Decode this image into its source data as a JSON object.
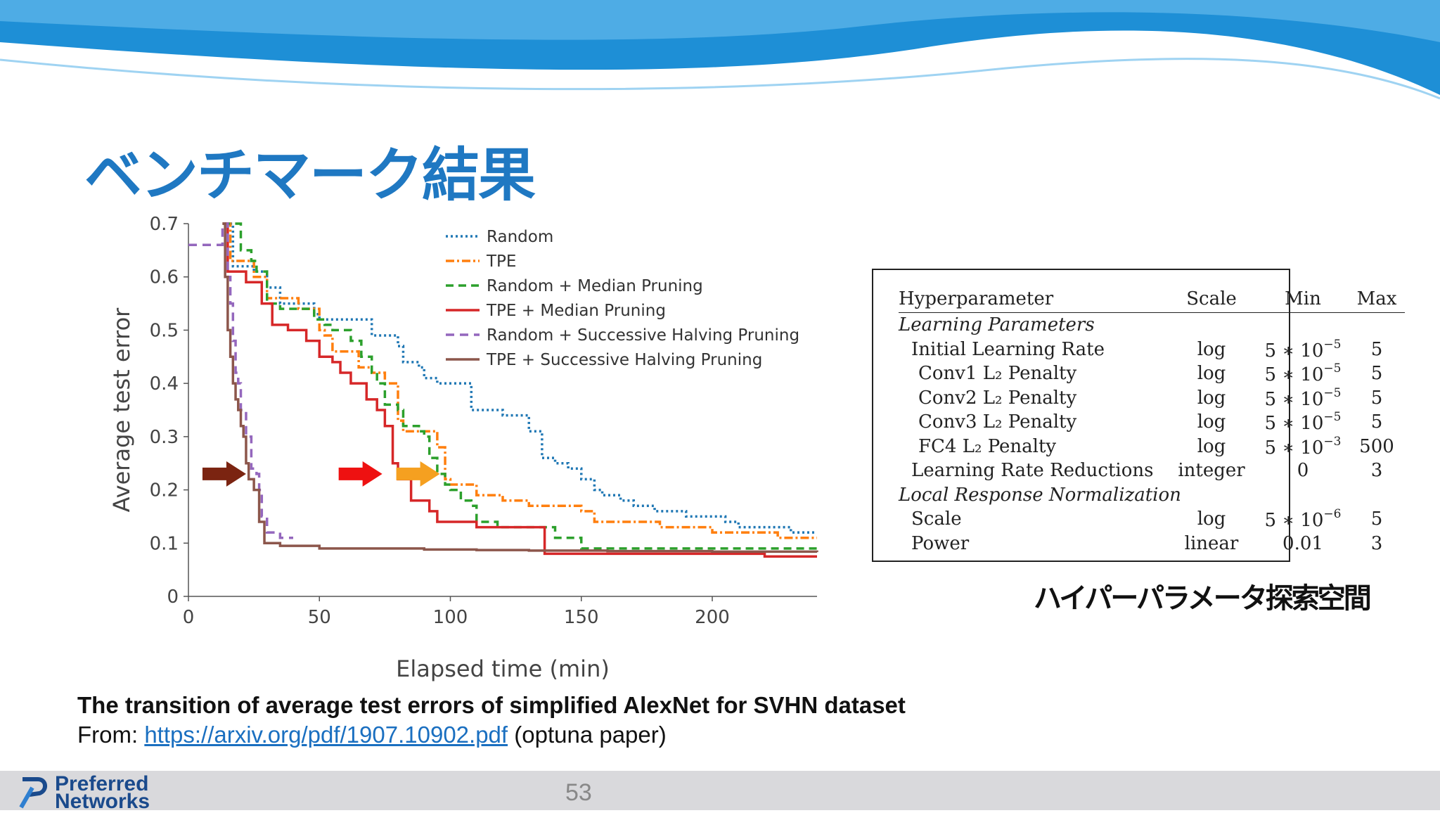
{
  "slide": {
    "title": "ベンチマーク結果",
    "caption": "The transition of average test errors of simplified AlexNet for SVHN dataset",
    "source_prefix": "From: ",
    "source_link": "https://arxiv.org/pdf/1907.10902.pdf",
    "source_suffix": " (optuna paper)",
    "table_caption": "ハイパーパラメータ探索空間",
    "page_number": "53",
    "logo": {
      "line1": "Preferred",
      "line2": "Networks"
    }
  },
  "chart_data": {
    "type": "line",
    "xlabel": "Elapsed time (min)",
    "ylabel": "Average test error",
    "xlim": [
      0,
      240
    ],
    "ylim": [
      0,
      0.7
    ],
    "xticks": [
      0,
      50,
      100,
      150,
      200
    ],
    "yticks": [
      0,
      0.1,
      0.2,
      0.3,
      0.4,
      0.5,
      0.6,
      0.7
    ],
    "legend_position": "top-right",
    "series": [
      {
        "name": "Random",
        "color": "#1f77b4",
        "dash": "dotted",
        "points": [
          [
            14,
            0.7
          ],
          [
            17,
            0.62
          ],
          [
            25,
            0.61
          ],
          [
            30,
            0.58
          ],
          [
            35,
            0.55
          ],
          [
            48,
            0.53
          ],
          [
            50,
            0.52
          ],
          [
            58,
            0.52
          ],
          [
            66,
            0.52
          ],
          [
            70,
            0.49
          ],
          [
            80,
            0.47
          ],
          [
            82,
            0.44
          ],
          [
            88,
            0.43
          ],
          [
            90,
            0.41
          ],
          [
            95,
            0.4
          ],
          [
            106,
            0.4
          ],
          [
            108,
            0.35
          ],
          [
            115,
            0.35
          ],
          [
            120,
            0.34
          ],
          [
            126,
            0.34
          ],
          [
            130,
            0.31
          ],
          [
            135,
            0.26
          ],
          [
            140,
            0.25
          ],
          [
            145,
            0.24
          ],
          [
            150,
            0.22
          ],
          [
            155,
            0.2
          ],
          [
            158,
            0.19
          ],
          [
            165,
            0.18
          ],
          [
            170,
            0.17
          ],
          [
            178,
            0.16
          ],
          [
            185,
            0.16
          ],
          [
            190,
            0.15
          ],
          [
            200,
            0.15
          ],
          [
            205,
            0.14
          ],
          [
            210,
            0.13
          ],
          [
            215,
            0.13
          ],
          [
            225,
            0.13
          ],
          [
            230,
            0.12
          ],
          [
            240,
            0.12
          ]
        ]
      },
      {
        "name": "TPE",
        "color": "#ff7f0e",
        "dash": "dashdot",
        "points": [
          [
            14,
            0.7
          ],
          [
            16,
            0.63
          ],
          [
            20,
            0.63
          ],
          [
            25,
            0.6
          ],
          [
            30,
            0.56
          ],
          [
            35,
            0.56
          ],
          [
            42,
            0.54
          ],
          [
            50,
            0.5
          ],
          [
            52,
            0.49
          ],
          [
            55,
            0.46
          ],
          [
            60,
            0.46
          ],
          [
            65,
            0.43
          ],
          [
            70,
            0.42
          ],
          [
            75,
            0.4
          ],
          [
            80,
            0.33
          ],
          [
            82,
            0.31
          ],
          [
            90,
            0.31
          ],
          [
            95,
            0.28
          ],
          [
            98,
            0.22
          ],
          [
            100,
            0.21
          ],
          [
            110,
            0.19
          ],
          [
            120,
            0.18
          ],
          [
            130,
            0.17
          ],
          [
            140,
            0.17
          ],
          [
            150,
            0.16
          ],
          [
            155,
            0.14
          ],
          [
            165,
            0.14
          ],
          [
            180,
            0.13
          ],
          [
            200,
            0.12
          ],
          [
            210,
            0.12
          ],
          [
            225,
            0.11
          ],
          [
            240,
            0.11
          ]
        ]
      },
      {
        "name": "Random + Median Pruning",
        "color": "#2ca02c",
        "dash": "dashed",
        "points": [
          [
            13,
            0.7
          ],
          [
            18,
            0.7
          ],
          [
            20,
            0.65
          ],
          [
            24,
            0.63
          ],
          [
            26,
            0.61
          ],
          [
            30,
            0.55
          ],
          [
            35,
            0.54
          ],
          [
            48,
            0.52
          ],
          [
            52,
            0.51
          ],
          [
            55,
            0.5
          ],
          [
            60,
            0.5
          ],
          [
            62,
            0.48
          ],
          [
            66,
            0.45
          ],
          [
            70,
            0.42
          ],
          [
            72,
            0.4
          ],
          [
            75,
            0.36
          ],
          [
            80,
            0.35
          ],
          [
            82,
            0.32
          ],
          [
            88,
            0.31
          ],
          [
            90,
            0.3
          ],
          [
            92,
            0.26
          ],
          [
            95,
            0.23
          ],
          [
            98,
            0.21
          ],
          [
            100,
            0.2
          ],
          [
            104,
            0.18
          ],
          [
            108,
            0.17
          ],
          [
            110,
            0.14
          ],
          [
            118,
            0.13
          ],
          [
            130,
            0.13
          ],
          [
            140,
            0.11
          ],
          [
            148,
            0.11
          ],
          [
            150,
            0.09
          ],
          [
            160,
            0.09
          ],
          [
            180,
            0.09
          ],
          [
            200,
            0.09
          ],
          [
            220,
            0.09
          ],
          [
            240,
            0.085
          ]
        ]
      },
      {
        "name": "TPE + Median Pruning",
        "color": "#d62728",
        "dash": "solid",
        "points": [
          [
            13,
            0.7
          ],
          [
            15,
            0.61
          ],
          [
            19,
            0.61
          ],
          [
            22,
            0.59
          ],
          [
            25,
            0.59
          ],
          [
            28,
            0.55
          ],
          [
            32,
            0.51
          ],
          [
            38,
            0.5
          ],
          [
            45,
            0.48
          ],
          [
            50,
            0.45
          ],
          [
            55,
            0.44
          ],
          [
            58,
            0.42
          ],
          [
            62,
            0.4
          ],
          [
            65,
            0.4
          ],
          [
            68,
            0.37
          ],
          [
            72,
            0.35
          ],
          [
            75,
            0.32
          ],
          [
            78,
            0.25
          ],
          [
            80,
            0.22
          ],
          [
            85,
            0.18
          ],
          [
            92,
            0.16
          ],
          [
            95,
            0.14
          ],
          [
            100,
            0.14
          ],
          [
            110,
            0.13
          ],
          [
            125,
            0.13
          ],
          [
            135,
            0.13
          ],
          [
            136,
            0.08
          ],
          [
            140,
            0.08
          ],
          [
            160,
            0.08
          ],
          [
            200,
            0.08
          ],
          [
            220,
            0.075
          ],
          [
            240,
            0.075
          ]
        ]
      },
      {
        "name": "Random + Successive Halving Pruning",
        "color": "#9467bd",
        "dash": "longdash",
        "points": [
          [
            0,
            0.66
          ],
          [
            12,
            0.66
          ],
          [
            13,
            0.7
          ],
          [
            15,
            0.6
          ],
          [
            16,
            0.55
          ],
          [
            17,
            0.48
          ],
          [
            18,
            0.42
          ],
          [
            19,
            0.4
          ],
          [
            20,
            0.35
          ],
          [
            22,
            0.3
          ],
          [
            24,
            0.24
          ],
          [
            26,
            0.23
          ],
          [
            27,
            0.2
          ],
          [
            28,
            0.15
          ],
          [
            30,
            0.12
          ],
          [
            35,
            0.11
          ],
          [
            40,
            0.11
          ]
        ]
      },
      {
        "name": "TPE + Successive Halving Pruning",
        "color": "#8c564b",
        "dash": "solid",
        "points": [
          [
            13,
            0.7
          ],
          [
            14,
            0.6
          ],
          [
            15,
            0.5
          ],
          [
            16,
            0.45
          ],
          [
            17,
            0.4
          ],
          [
            18,
            0.37
          ],
          [
            19,
            0.35
          ],
          [
            20,
            0.32
          ],
          [
            21,
            0.3
          ],
          [
            22,
            0.25
          ],
          [
            23,
            0.22
          ],
          [
            25,
            0.2
          ],
          [
            27,
            0.14
          ],
          [
            29,
            0.1
          ],
          [
            35,
            0.095
          ],
          [
            50,
            0.09
          ],
          [
            70,
            0.09
          ],
          [
            90,
            0.088
          ],
          [
            110,
            0.087
          ],
          [
            130,
            0.086
          ],
          [
            160,
            0.085
          ],
          [
            200,
            0.084
          ],
          [
            240,
            0.083
          ]
        ]
      }
    ],
    "annotations": [
      {
        "type": "arrow",
        "color": "#7b2411",
        "x": 22,
        "y": 0.23
      },
      {
        "type": "arrow",
        "color": "#ee1111",
        "x": 74,
        "y": 0.23
      },
      {
        "type": "arrow",
        "color": "#f5a020",
        "x": 96,
        "y": 0.23
      }
    ]
  },
  "table": {
    "headers": [
      "Hyperparameter",
      "Scale",
      "Min",
      "Max"
    ],
    "sections": [
      {
        "title": "Learning Parameters",
        "rows": [
          {
            "name": "Initial Learning Rate",
            "indent": 1,
            "scale": "log",
            "min": "5 ∗ 10",
            "min_exp": "−5",
            "max": "5"
          },
          {
            "name": "Conv1 L₂ Penalty",
            "indent": 2,
            "scale": "log",
            "min": "5 ∗ 10",
            "min_exp": "−5",
            "max": "5"
          },
          {
            "name": "Conv2 L₂ Penalty",
            "indent": 2,
            "scale": "log",
            "min": "5 ∗ 10",
            "min_exp": "−5",
            "max": "5"
          },
          {
            "name": "Conv3 L₂ Penalty",
            "indent": 2,
            "scale": "log",
            "min": "5 ∗ 10",
            "min_exp": "−5",
            "max": "5"
          },
          {
            "name": "FC4 L₂ Penalty",
            "indent": 2,
            "scale": "log",
            "min": "5 ∗ 10",
            "min_exp": "−3",
            "max": "500"
          },
          {
            "name": "Learning Rate Reductions",
            "indent": 1,
            "scale": "integer",
            "min": "0",
            "min_exp": "",
            "max": "3"
          }
        ]
      },
      {
        "title": "Local Response Normalization",
        "rows": [
          {
            "name": "Scale",
            "indent": 1,
            "scale": "log",
            "min": "5 ∗ 10",
            "min_exp": "−6",
            "max": "5"
          },
          {
            "name": "Power",
            "indent": 1,
            "scale": "linear",
            "min": "0.01",
            "min_exp": "",
            "max": "3"
          }
        ]
      }
    ]
  }
}
